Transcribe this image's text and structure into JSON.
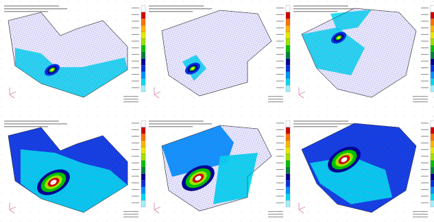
{
  "panels": [
    {
      "legend_colors": [
        "#ffffff",
        "#d00000",
        "#ff7000",
        "#ffb400",
        "#e8e800",
        "#a0e000",
        "#00c000",
        "#008040",
        "#000090",
        "#0030e0",
        "#0090ff",
        "#00d8f0",
        "#a0f0ff"
      ]
    },
    {
      "legend_colors": [
        "#ffffff",
        "#d00000",
        "#ff7000",
        "#ffb400",
        "#e8e800",
        "#a0e000",
        "#00c000",
        "#008040",
        "#000090",
        "#0030e0",
        "#0090ff",
        "#00d8f0",
        "#a0f0ff"
      ]
    },
    {
      "legend_colors": [
        "#ffffff",
        "#d00000",
        "#ff7000",
        "#ffb400",
        "#e8e800",
        "#a0e000",
        "#00c000",
        "#008040",
        "#000090",
        "#0030e0",
        "#0090ff",
        "#00d8f0",
        "#a0f0ff"
      ]
    },
    {
      "legend_colors": [
        "#ffffff",
        "#d00000",
        "#ff7000",
        "#ffb400",
        "#e8e800",
        "#a0e000",
        "#00c000",
        "#008040",
        "#000090",
        "#0030e0",
        "#0090ff",
        "#00d8f0",
        "#a0f0ff"
      ]
    },
    {
      "legend_colors": [
        "#ffffff",
        "#d00000",
        "#ff7000",
        "#ffb400",
        "#e8e800",
        "#a0e000",
        "#00c000",
        "#008040",
        "#000090",
        "#0030e0",
        "#0090ff",
        "#00d8f0",
        "#a0f0ff"
      ]
    },
    {
      "legend_colors": [
        "#ffffff",
        "#d00000",
        "#ff7000",
        "#ffb400",
        "#e8e800",
        "#a0e000",
        "#00c000",
        "#008040",
        "#000090",
        "#0030e0",
        "#0090ff",
        "#00d8f0",
        "#a0f0ff"
      ]
    }
  ]
}
